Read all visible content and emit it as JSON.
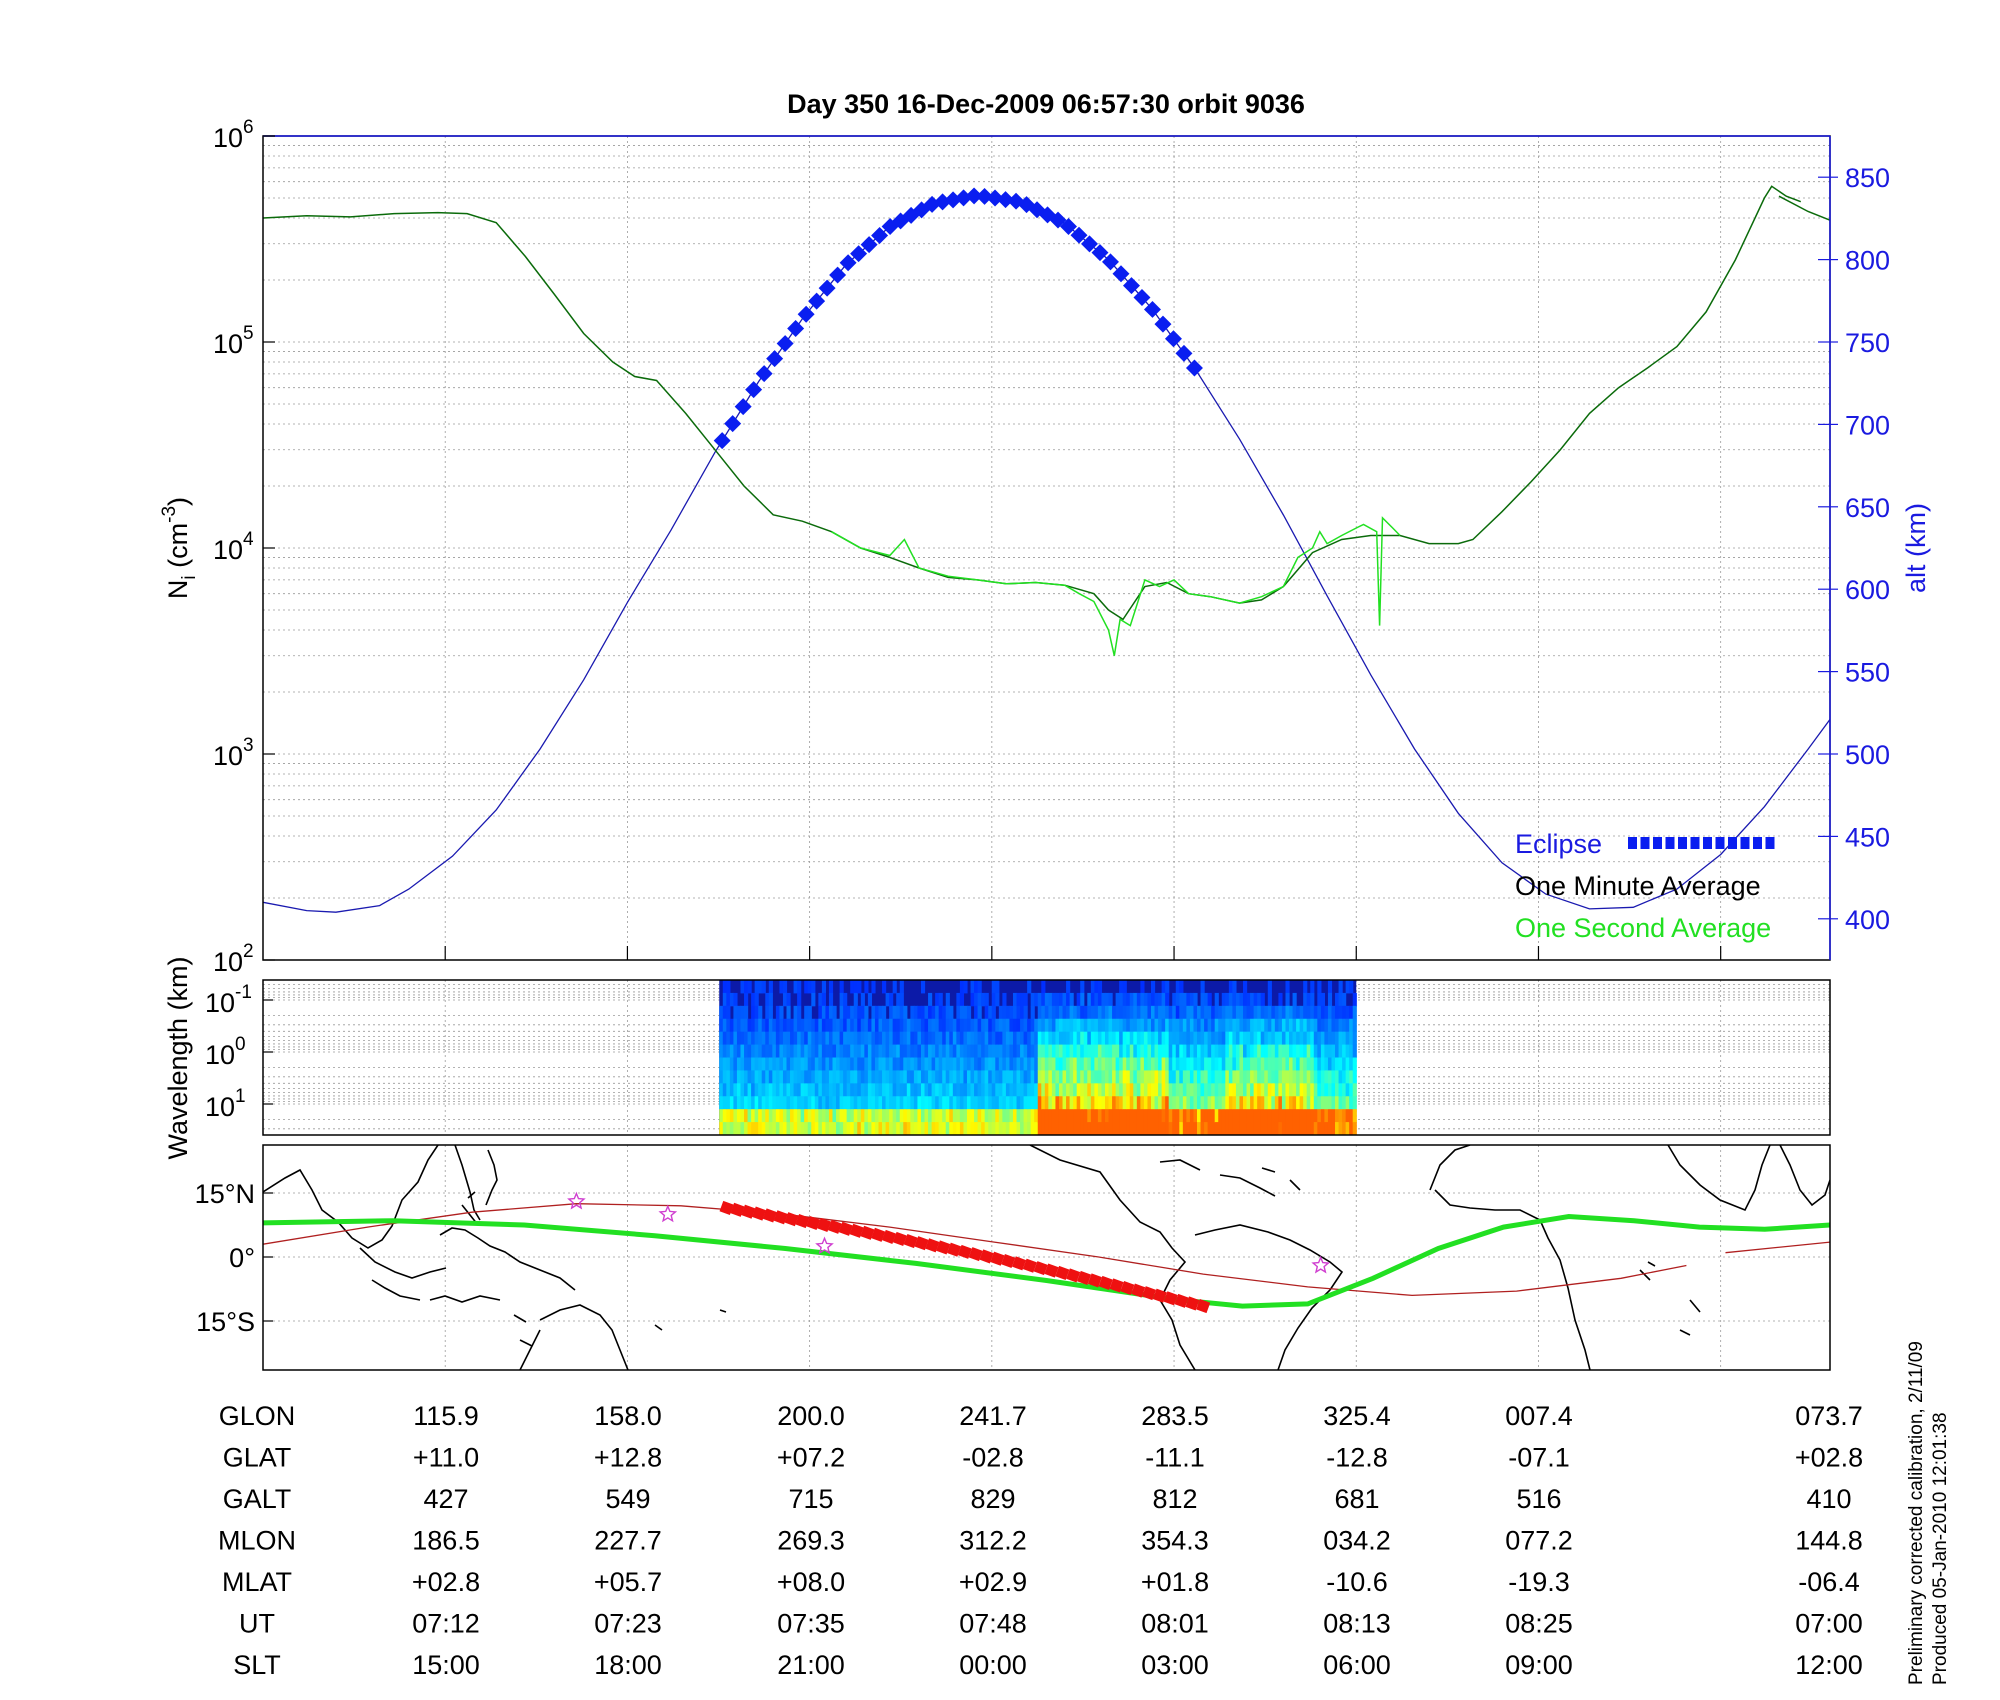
{
  "chart_data": [
    {
      "type": "line",
      "title": "Day 350  16-Dec-2009 06:57:30   orbit 9036",
      "ylabel_left": "N",
      "ylabel_left_sub": "i",
      "ylabel_left_unit_pre": " (cm",
      "ylabel_left_unit_sup": "-3",
      "ylabel_left_unit_post": ")",
      "ylabel_right": "alt (km)",
      "yscale_left": "log",
      "ylim_left": [
        100,
        1000000
      ],
      "y_left_ticks": [
        {
          "base": "10",
          "exp": "2",
          "value": 100
        },
        {
          "base": "10",
          "exp": "3",
          "value": 1000
        },
        {
          "base": "10",
          "exp": "4",
          "value": 10000
        },
        {
          "base": "10",
          "exp": "5",
          "value": 100000
        },
        {
          "base": "10",
          "exp": "6",
          "value": 1000000
        }
      ],
      "ylim_right": [
        375,
        875
      ],
      "y_right_ticks": [
        "400",
        "450",
        "500",
        "550",
        "600",
        "650",
        "700",
        "750",
        "800",
        "850"
      ],
      "x_minutes_ticks": [
        0,
        12.5,
        25,
        37.5,
        50,
        62.5,
        75,
        87.5,
        100,
        107.5
      ],
      "grid": true,
      "legend_position": "bottom-right",
      "legend": {
        "eclipse": "Eclipse",
        "one_minute": "One Minute Average",
        "one_second": "One Second Average"
      },
      "colors": {
        "eclipse": "#0a1ef0",
        "one_minute": "#0b6b0b",
        "one_second": "#22e022",
        "altitude": "#1a1ab0"
      },
      "series": [
        {
          "name": "One Minute Average",
          "unit": "cm^-3",
          "points": [
            [
              0,
              400000
            ],
            [
              3,
              410000
            ],
            [
              6,
              405000
            ],
            [
              9,
              420000
            ],
            [
              12,
              425000
            ],
            [
              14,
              420000
            ],
            [
              16,
              380000
            ],
            [
              18,
              260000
            ],
            [
              20,
              170000
            ],
            [
              22,
              110000
            ],
            [
              24,
              80000
            ],
            [
              25.5,
              68000
            ],
            [
              27,
              65000
            ],
            [
              29,
              45000
            ],
            [
              31,
              30000
            ],
            [
              33,
              20000
            ],
            [
              35,
              14500
            ],
            [
              37,
              13500
            ],
            [
              39,
              12000
            ],
            [
              41,
              10000
            ],
            [
              43,
              9000
            ],
            [
              45,
              8000
            ],
            [
              47,
              7200
            ],
            [
              49,
              7000
            ],
            [
              51,
              6700
            ],
            [
              53,
              6800
            ],
            [
              55,
              6600
            ],
            [
              57,
              6000
            ],
            [
              58,
              5000
            ],
            [
              59,
              4500
            ],
            [
              60.5,
              6500
            ],
            [
              62,
              6800
            ],
            [
              63.5,
              6000
            ],
            [
              65,
              5800
            ],
            [
              67,
              5400
            ],
            [
              68.5,
              5600
            ],
            [
              70,
              6500
            ],
            [
              72,
              9500
            ],
            [
              74,
              11000
            ],
            [
              76,
              11500
            ],
            [
              78,
              11500
            ],
            [
              80,
              10500
            ],
            [
              82,
              10500
            ],
            [
              83,
              11000
            ],
            [
              85,
              15000
            ],
            [
              87,
              21000
            ],
            [
              89,
              30000
            ],
            [
              91,
              45000
            ],
            [
              93,
              60000
            ],
            [
              95,
              75000
            ],
            [
              97,
              95000
            ],
            [
              99,
              140000
            ],
            [
              101,
              250000
            ],
            [
              103,
              500000
            ],
            [
              103.5,
              570000
            ],
            [
              104.5,
              510000
            ],
            [
              105.5,
              480000
            ]
          ]
        },
        {
          "name": "One Minute Average",
          "unit": "cm^-3",
          "points": [
            [
              104,
              510000
            ],
            [
              106,
              430000
            ],
            [
              107.5,
              390000
            ]
          ]
        },
        {
          "name": "One Second Average",
          "unit": "cm^-3",
          "points": [
            [
              39,
              12000
            ],
            [
              41,
              10000
            ],
            [
              43,
              9200
            ],
            [
              44,
              11000
            ],
            [
              45,
              8000
            ],
            [
              47,
              7300
            ],
            [
              49,
              7000
            ],
            [
              51,
              6700
            ],
            [
              53,
              6800
            ],
            [
              55,
              6600
            ],
            [
              56,
              6000
            ],
            [
              57,
              5500
            ],
            [
              58,
              4000
            ],
            [
              58.4,
              3000
            ],
            [
              58.8,
              4500
            ],
            [
              59.5,
              4200
            ],
            [
              60.5,
              7000
            ],
            [
              61.5,
              6500
            ],
            [
              62.5,
              7000
            ],
            [
              63.5,
              6000
            ],
            [
              65,
              5800
            ],
            [
              67,
              5400
            ],
            [
              68.5,
              5800
            ],
            [
              70,
              6500
            ],
            [
              71,
              9000
            ],
            [
              72,
              10000
            ],
            [
              72.5,
              12000
            ],
            [
              73,
              10500
            ],
            [
              74,
              11500
            ],
            [
              75,
              12500
            ],
            [
              75.5,
              13000
            ],
            [
              76.4,
              12000
            ],
            [
              76.6,
              4200
            ],
            [
              76.8,
              14000
            ],
            [
              77.5,
              12500
            ],
            [
              78,
              11500
            ]
          ]
        },
        {
          "name": "",
          "unit": "km",
          "axis": "right",
          "points": [
            [
              0,
              410
            ],
            [
              3,
              405
            ],
            [
              5,
              404
            ],
            [
              8,
              408
            ],
            [
              10,
              418
            ],
            [
              13,
              438
            ],
            [
              16,
              466
            ],
            [
              19,
              503
            ],
            [
              22,
              545
            ],
            [
              25,
              592
            ],
            [
              28,
              636
            ],
            [
              31,
              683
            ],
            [
              34,
              726
            ],
            [
              37,
              764
            ],
            [
              40,
              797
            ],
            [
              43,
              820
            ],
            [
              46,
              834
            ],
            [
              49,
              839
            ],
            [
              52,
              835
            ],
            [
              55,
              822
            ],
            [
              58,
              800
            ],
            [
              61,
              770
            ],
            [
              64,
              733
            ],
            [
              67,
              691
            ],
            [
              70,
              645
            ],
            [
              73,
              596
            ],
            [
              76,
              548
            ],
            [
              79,
              503
            ],
            [
              82,
              464
            ],
            [
              85,
              434
            ],
            [
              88,
              415
            ],
            [
              91,
              406
            ],
            [
              94,
              407
            ],
            [
              97,
              418
            ],
            [
              100,
              439
            ],
            [
              103,
              468
            ],
            [
              106,
              503
            ],
            [
              107.5,
              521
            ]
          ]
        }
      ],
      "eclipse_span_minutes": [
        31.5,
        64.5
      ]
    },
    {
      "type": "heatmap",
      "ylabel": "Wavelength (km)",
      "yscale": "log",
      "y_ticks": [
        {
          "base": "10",
          "exp": "-1"
        },
        {
          "base": "10",
          "exp": "0"
        },
        {
          "base": "10",
          "exp": "1"
        }
      ],
      "data_span_minutes": [
        31.3,
        75
      ],
      "colormap": "jet"
    },
    {
      "type": "line",
      "map": "world coastline",
      "y_ticks": [
        "15°N",
        "0°",
        "15°S"
      ],
      "colors": {
        "ground_track": "#22e022",
        "magnetic_equator": "#b02020",
        "eclipse_track": "#ee1111",
        "stars": "#d040d0"
      },
      "series": [
        {
          "name": "",
          "unit": "deg lat",
          "points": [
            [
              0,
              8
            ],
            [
              10,
              8.5
            ],
            [
              20,
              7.5
            ],
            [
              30,
              5
            ],
            [
              40,
              2
            ],
            [
              50,
              -1.5
            ],
            [
              60,
              -5.5
            ],
            [
              70,
              -10
            ],
            [
              75,
              -11.5
            ],
            [
              80,
              -11
            ],
            [
              85,
              -5
            ],
            [
              90,
              2
            ],
            [
              95,
              7
            ],
            [
              100,
              9.5
            ],
            [
              105,
              8.5
            ],
            [
              110,
              7
            ],
            [
              115,
              6.5
            ],
            [
              120,
              7.5
            ]
          ]
        },
        {
          "name": "",
          "unit": "deg lat",
          "points": [
            [
              0,
              3
            ],
            [
              8,
              7
            ],
            [
              16,
              10.5
            ],
            [
              24,
              12.5
            ],
            [
              32,
              12
            ],
            [
              40,
              10
            ],
            [
              48,
              7
            ],
            [
              56,
              3.5
            ],
            [
              64,
              0
            ],
            [
              72,
              -4
            ],
            [
              80,
              -7
            ],
            [
              88,
              -9
            ],
            [
              96,
              -8
            ],
            [
              104,
              -5
            ],
            [
              109,
              -2
            ]
          ]
        }
      ],
      "stars": [
        [
          24,
          13
        ],
        [
          31,
          10
        ],
        [
          43,
          2.5
        ],
        [
          81,
          -2
        ]
      ],
      "eclipse_span_minutes": [
        31.5,
        64.5
      ]
    }
  ],
  "table": {
    "rows": [
      {
        "label": "GLON",
        "values": [
          "115.9",
          "158.0",
          "200.0",
          "241.7",
          "283.5",
          "325.4",
          "007.4",
          "073.7"
        ]
      },
      {
        "label": "GLAT",
        "values": [
          "+11.0",
          "+12.8",
          "+07.2",
          "-02.8",
          "-11.1",
          "-12.8",
          "-07.1",
          "+02.8"
        ]
      },
      {
        "label": "GALT",
        "values": [
          "427",
          "549",
          "715",
          "829",
          "812",
          "681",
          "516",
          "410"
        ]
      },
      {
        "label": "MLON",
        "values": [
          "186.5",
          "227.7",
          "269.3",
          "312.2",
          "354.3",
          "034.2",
          "077.2",
          "144.8"
        ]
      },
      {
        "label": "MLAT",
        "values": [
          "+02.8",
          "+05.7",
          "+08.0",
          "+02.9",
          "+01.8",
          "-10.6",
          "-19.3",
          "-06.4"
        ]
      },
      {
        "label": "UT",
        "values": [
          "07:12",
          "07:23",
          "07:35",
          "07:48",
          "08:01",
          "08:13",
          "08:25",
          "07:00"
        ]
      },
      {
        "label": "SLT",
        "values": [
          "15:00",
          "18:00",
          "21:00",
          "00:00",
          "03:00",
          "06:00",
          "09:00",
          "12:00"
        ]
      }
    ]
  },
  "footnote": {
    "line1": "Preliminary corrected calibration, 2/11/09",
    "line2": "Produced 05-Jan-2010 12:01:38"
  }
}
